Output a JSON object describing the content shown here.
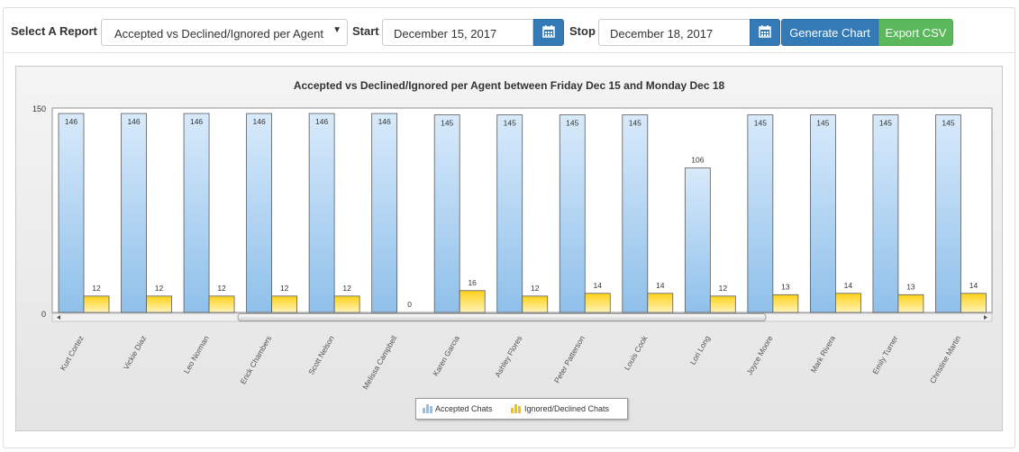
{
  "toolbar": {
    "report_label": "Select A Report",
    "report_value": "Accepted vs Declined/Ignored per Agent",
    "start_label": "Start",
    "start_value": "December 15, 2017",
    "stop_label": "Stop",
    "stop_value": "December 18, 2017",
    "generate_label": "Generate Chart",
    "export_label": "Export CSV"
  },
  "chart_data": {
    "type": "bar",
    "title": "Accepted vs Declined/Ignored per Agent between Friday Dec 15 and Monday Dec 18",
    "categories": [
      "Kurt Cortez",
      "Vickie Diaz",
      "Leo Norman",
      "Erick Chambers",
      "Scott Nelson",
      "Melissa Campbell",
      "Karen Garcia",
      "Ashley Flores",
      "Peter Patterson",
      "Louis Cook",
      "Lori Long",
      "Joyce Moore",
      "Mark Rivera",
      "Emily Turner",
      "Christine Martin"
    ],
    "series": [
      {
        "name": "Accepted Chats",
        "values": [
          146,
          146,
          146,
          146,
          146,
          146,
          145,
          145,
          145,
          145,
          106,
          145,
          145,
          145,
          145
        ]
      },
      {
        "name": "Ignored/Declined Chats",
        "values": [
          12,
          12,
          12,
          12,
          12,
          0,
          16,
          12,
          14,
          14,
          12,
          13,
          14,
          13,
          14
        ]
      }
    ],
    "ylim": [
      0,
      150
    ],
    "yticks": [
      "0",
      "150"
    ],
    "legend_position": "bottom-center",
    "colors": {
      "accepted_top": "#d8eafb",
      "accepted_bottom": "#8fc0ea",
      "accepted_stroke": "#5a5a5a",
      "declined_top": "#ffd21a",
      "declined_bottom": "#fff3b8",
      "declined_stroke": "#5a5a5a"
    }
  }
}
